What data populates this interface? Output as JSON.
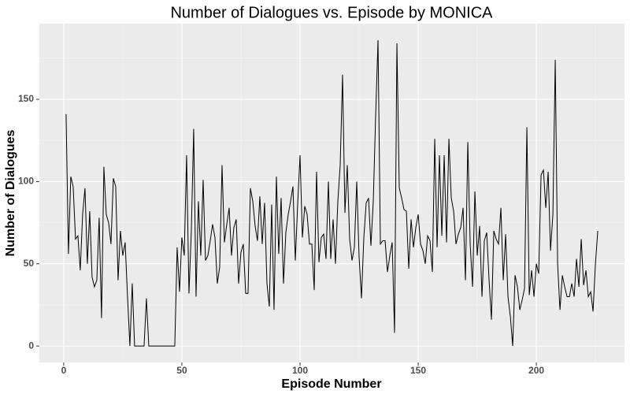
{
  "chart_data": {
    "type": "line",
    "title": "Number of Dialogues vs. Episode by MONICA",
    "x_label": "Episode Number",
    "y_label": "Number of Dialogues",
    "x": [
      1,
      2,
      3,
      4,
      5,
      6,
      7,
      8,
      9,
      10,
      11,
      12,
      13,
      14,
      15,
      16,
      17,
      18,
      19,
      20,
      21,
      22,
      23,
      24,
      25,
      26,
      27,
      28,
      29,
      30,
      31,
      32,
      33,
      34,
      35,
      36,
      37,
      38,
      39,
      40,
      41,
      42,
      43,
      44,
      45,
      46,
      47,
      48,
      49,
      50,
      51,
      52,
      53,
      54,
      55,
      56,
      57,
      58,
      59,
      60,
      61,
      62,
      63,
      64,
      65,
      66,
      67,
      68,
      69,
      70,
      71,
      72,
      73,
      74,
      75,
      76,
      77,
      78,
      79,
      80,
      81,
      82,
      83,
      84,
      85,
      86,
      87,
      88,
      89,
      90,
      91,
      92,
      93,
      94,
      95,
      96,
      97,
      98,
      99,
      100,
      101,
      102,
      103,
      104,
      105,
      106,
      107,
      108,
      109,
      110,
      111,
      112,
      113,
      114,
      115,
      116,
      117,
      118,
      119,
      120,
      121,
      122,
      123,
      124,
      125,
      126,
      127,
      128,
      129,
      130,
      131,
      132,
      133,
      134,
      135,
      136,
      137,
      138,
      139,
      140,
      141,
      142,
      143,
      144,
      145,
      146,
      147,
      148,
      149,
      150,
      151,
      152,
      153,
      154,
      155,
      156,
      157,
      158,
      159,
      160,
      161,
      162,
      163,
      164,
      165,
      166,
      167,
      168,
      169,
      170,
      171,
      172,
      173,
      174,
      175,
      176,
      177,
      178,
      179,
      180,
      181,
      182,
      183,
      184,
      185,
      186,
      187,
      188,
      189,
      190,
      191,
      192,
      193,
      194,
      195,
      196,
      197,
      198,
      199,
      200,
      201,
      202,
      203,
      204,
      205,
      206,
      207,
      208,
      209,
      210,
      211,
      212,
      213,
      214,
      215,
      216,
      217,
      218,
      219,
      220,
      221,
      222,
      223,
      224,
      225,
      226
    ],
    "series": [
      {
        "name": "MONICA",
        "color": "#000000",
        "values": [
          141,
          56,
          103,
          97,
          65,
          67,
          46,
          80,
          96,
          50,
          82,
          42,
          36,
          40,
          78,
          17,
          109,
          80,
          75,
          62,
          102,
          97,
          40,
          70,
          55,
          63,
          30,
          0,
          38,
          0,
          0,
          0,
          0,
          0,
          29,
          0,
          0,
          0,
          0,
          0,
          0,
          0,
          0,
          0,
          0,
          0,
          0,
          60,
          33,
          66,
          55,
          116,
          32,
          70,
          132,
          30,
          88,
          55,
          101,
          52,
          55,
          64,
          74,
          66,
          38,
          48,
          110,
          63,
          74,
          84,
          55,
          72,
          77,
          38,
          57,
          62,
          32,
          32,
          96,
          88,
          73,
          64,
          91,
          62,
          87,
          38,
          24,
          86,
          22,
          103,
          56,
          90,
          38,
          69,
          80,
          88,
          97,
          52,
          86,
          116,
          66,
          85,
          80,
          62,
          62,
          34,
          106,
          51,
          66,
          68,
          53,
          100,
          53,
          77,
          50,
          88,
          110,
          165,
          81,
          110,
          65,
          52,
          60,
          100,
          54,
          29,
          66,
          87,
          90,
          61,
          88,
          140,
          186,
          62,
          64,
          64,
          45,
          55,
          63,
          8,
          184,
          96,
          90,
          83,
          82,
          47,
          77,
          60,
          72,
          80,
          62,
          58,
          50,
          67,
          64,
          45,
          126,
          60,
          116,
          67,
          116,
          63,
          126,
          90,
          82,
          62,
          68,
          72,
          84,
          40,
          124,
          62,
          36,
          94,
          55,
          73,
          30,
          64,
          69,
          40,
          16,
          70,
          65,
          62,
          84,
          40,
          68,
          30,
          18,
          0,
          43,
          36,
          22,
          28,
          35,
          133,
          31,
          46,
          30,
          50,
          44,
          104,
          107,
          84,
          106,
          58,
          80,
          174,
          50,
          22,
          43,
          36,
          30,
          30,
          38,
          30,
          53,
          36,
          65,
          37,
          46,
          30,
          33,
          21,
          50,
          70
        ]
      }
    ],
    "xlim": [
      -10.3,
      237.3
    ],
    "ylim": [
      -10,
      196
    ],
    "xticks": [
      0,
      50,
      100,
      150,
      200
    ],
    "yticks": [
      0,
      50,
      100,
      150
    ],
    "grid": true
  }
}
